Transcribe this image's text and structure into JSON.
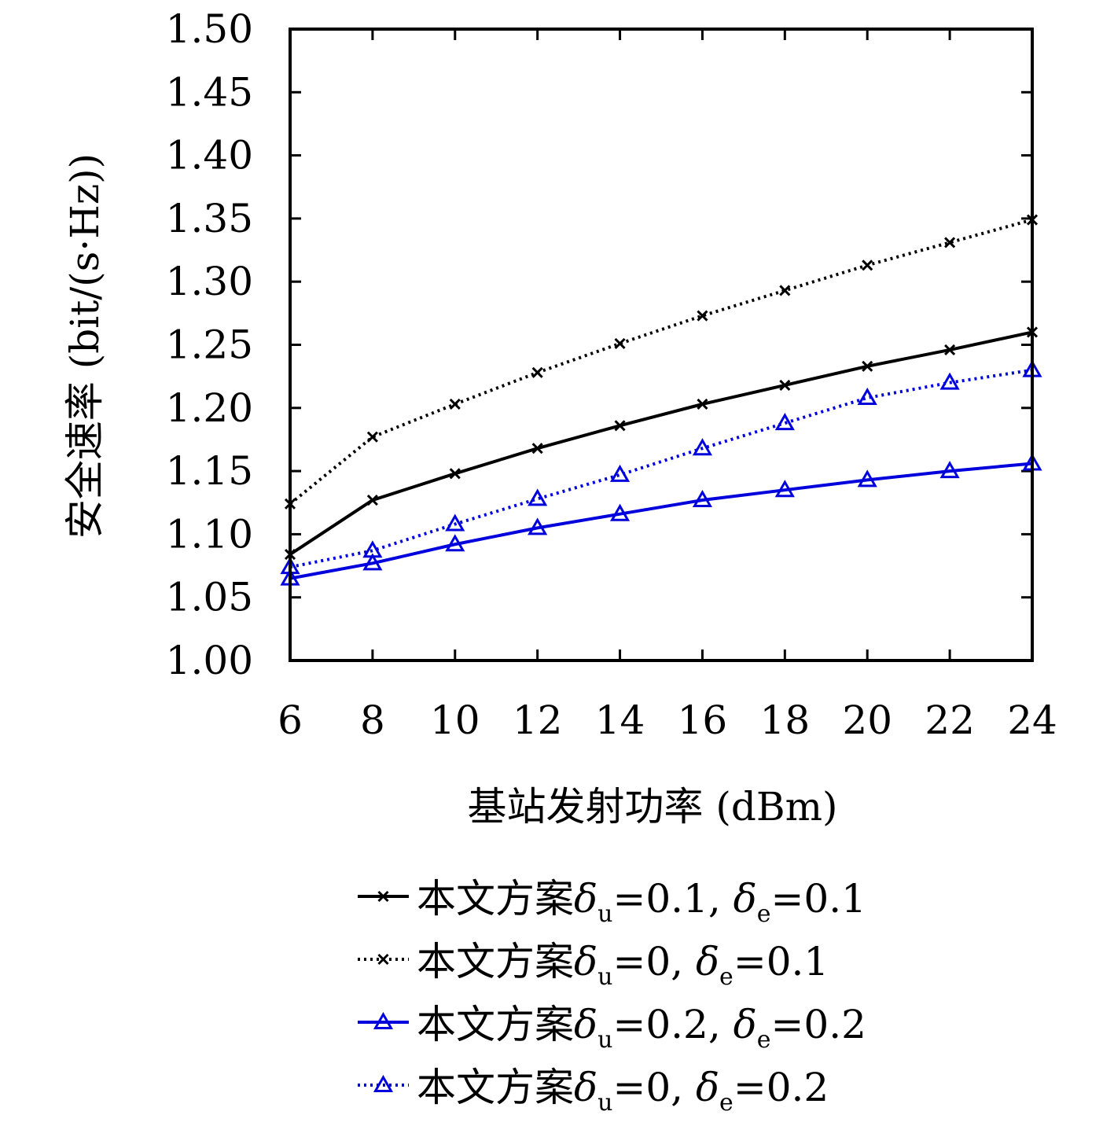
{
  "chart_data": {
    "type": "line",
    "title": "",
    "xlabel": "基站发射功率 (dBm)",
    "ylabel": "安全速率 (bit/(s·Hz))",
    "x": [
      6,
      8,
      10,
      12,
      14,
      16,
      18,
      20,
      22,
      24
    ],
    "xlim": [
      6,
      24
    ],
    "ylim": [
      1.0,
      1.5
    ],
    "x_ticks": [
      "6",
      "8",
      "10",
      "12",
      "14",
      "16",
      "18",
      "20",
      "22",
      "24"
    ],
    "y_ticks": [
      "1.00",
      "1.05",
      "1.10",
      "1.15",
      "1.20",
      "1.25",
      "1.30",
      "1.35",
      "1.40",
      "1.45",
      "1.50"
    ],
    "grid": false,
    "legend_position": "bottom",
    "series": [
      {
        "legend_prefix": "本文方案",
        "du_value": "=0.1, ",
        "de_value": "=0.1",
        "color": "#000000",
        "line_style": "solid",
        "marker": "x",
        "values": [
          1.084,
          1.127,
          1.148,
          1.168,
          1.186,
          1.203,
          1.218,
          1.233,
          1.246,
          1.26
        ]
      },
      {
        "legend_prefix": "本文方案",
        "du_value": "=0, ",
        "de_value": "=0.1",
        "color": "#000000",
        "line_style": "dotted",
        "marker": "x",
        "values": [
          1.124,
          1.177,
          1.203,
          1.228,
          1.251,
          1.273,
          1.293,
          1.313,
          1.331,
          1.349
        ]
      },
      {
        "legend_prefix": "本文方案",
        "du_value": "=0.2, ",
        "de_value": "=0.2",
        "color": "#0000dd",
        "line_style": "solid",
        "marker": "triangle",
        "values": [
          1.065,
          1.077,
          1.092,
          1.105,
          1.116,
          1.127,
          1.135,
          1.143,
          1.15,
          1.156
        ]
      },
      {
        "legend_prefix": "本文方案",
        "du_value": "=0, ",
        "de_value": "=0.2",
        "color": "#0000dd",
        "line_style": "dotted",
        "marker": "triangle",
        "values": [
          1.074,
          1.087,
          1.108,
          1.128,
          1.147,
          1.168,
          1.188,
          1.208,
          1.22,
          1.23
        ]
      }
    ]
  },
  "legend_symbols": {
    "delta": "δ",
    "sub_u": "u",
    "sub_e": "e"
  }
}
